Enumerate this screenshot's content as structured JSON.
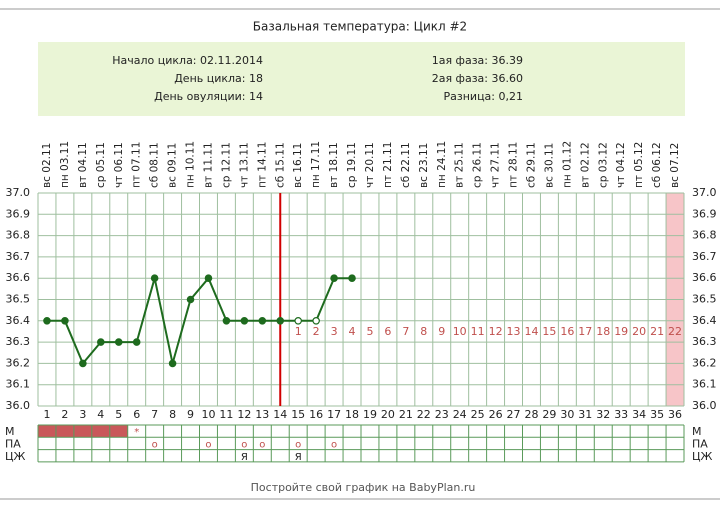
{
  "chart_data": {
    "type": "line",
    "title": "Базальная температура: Цикл #2",
    "info_left": [
      "Начало цикла: 02.11.2014",
      "День цикла: 18",
      "День овуляции: 14"
    ],
    "info_right": [
      "1ая фаза: 36.39",
      "2ая фаза: 36.60",
      "Разница: 0,21"
    ],
    "dates": [
      "вс 02.11",
      "пн 03.11",
      "вт 04.11",
      "ср 05.11",
      "чт 06.11",
      "пт 07.11",
      "сб 08.11",
      "вс 09.11",
      "пн 10.11",
      "вт 11.11",
      "ср 12.11",
      "чт 13.11",
      "пт 14.11",
      "сб 15.11",
      "вс 16.11",
      "пн 17.11",
      "вт 18.11",
      "ср 19.11",
      "чт 20.11",
      "пт 21.11",
      "сб 22.11",
      "вс 23.11",
      "пн 24.11",
      "вт 25.11",
      "ср 26.11",
      "чт 27.11",
      "пт 28.11",
      "сб 29.11",
      "вс 30.11",
      "пн 01.12",
      "вт 02.12",
      "ср 03.12",
      "чт 04.12",
      "пт 05.12",
      "сб 06.12",
      "вс 07.12"
    ],
    "x": [
      1,
      2,
      3,
      4,
      5,
      6,
      7,
      8,
      9,
      10,
      11,
      12,
      13,
      14,
      15,
      16,
      17,
      18,
      19,
      20,
      21,
      22,
      23,
      24,
      25,
      26,
      27,
      28,
      29,
      30,
      31,
      32,
      33,
      34,
      35,
      36
    ],
    "series": [
      {
        "name": "BBT",
        "color": "#1e6b1e",
        "values": [
          36.4,
          36.4,
          36.2,
          36.3,
          36.3,
          36.3,
          36.6,
          36.2,
          36.5,
          36.6,
          36.4,
          36.4,
          36.4,
          36.4,
          36.4,
          36.4,
          36.6,
          36.6,
          null,
          null,
          null,
          null,
          null,
          null,
          null,
          null,
          null,
          null,
          null,
          null,
          null,
          null,
          null,
          null,
          null,
          null
        ]
      }
    ],
    "open_points": [
      15,
      16
    ],
    "phase2_days": [
      null,
      null,
      null,
      null,
      null,
      null,
      null,
      null,
      null,
      null,
      null,
      null,
      null,
      null,
      1,
      2,
      3,
      4,
      5,
      6,
      7,
      8,
      9,
      10,
      11,
      12,
      13,
      14,
      15,
      16,
      17,
      18,
      19,
      20,
      21,
      22
    ],
    "ovulation_day": 14,
    "highlight_day": 36,
    "ylim": [
      36.0,
      37.0
    ],
    "yticks": [
      {
        "value": 36.0,
        "label": "36.0"
      },
      36.1,
      36.2,
      36.3,
      36.4,
      36.5,
      36.6,
      36.7,
      36.8,
      36.9,
      {
        "value": 37.0,
        "label": "37.0"
      }
    ],
    "grid": true,
    "rows": [
      {
        "name": "M",
        "filled_days": [
          1,
          2,
          3,
          4,
          5
        ],
        "marks": [
          {
            "day": 6,
            "label": "*"
          }
        ]
      },
      {
        "name": "ПА",
        "filled_days": [],
        "marks": [
          {
            "day": 7,
            "label": "o"
          },
          {
            "day": 10,
            "label": "o"
          },
          {
            "day": 12,
            "label": "o"
          },
          {
            "day": 13,
            "label": "o"
          },
          {
            "day": 15,
            "label": "o"
          },
          {
            "day": 17,
            "label": "o"
          }
        ]
      },
      {
        "name": "ЦЖ",
        "filled_days": [],
        "marks": [
          {
            "day": 12,
            "label": "Я"
          },
          {
            "day": 15,
            "label": "Я"
          }
        ]
      }
    ],
    "footer": "Постройте свой график на BabyPlan.ru"
  }
}
